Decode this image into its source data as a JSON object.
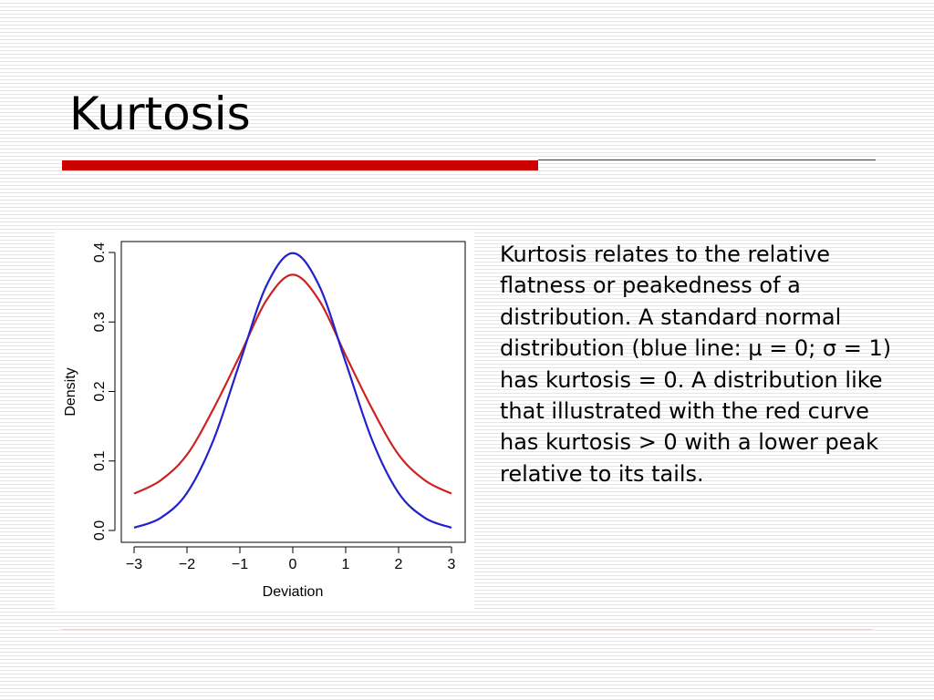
{
  "slide": {
    "title": "Kurtosis",
    "body": "Kurtosis relates to the relative flatness or peakedness of a distribution. A standard normal distribution (blue line: µ = 0; σ = 1) has kurtosis = 0. A distribution like that illustrated with the red curve has kurtosis > 0 with a lower peak relative to its tails."
  },
  "colors": {
    "accent_bar": "#cc0000",
    "normal_curve": "#2222cc",
    "heavy_tail_curve": "#cc2222"
  },
  "chart_data": {
    "type": "line",
    "xlabel": "Deviation",
    "ylabel": "Density",
    "xlim": [
      -3,
      3
    ],
    "ylim": [
      0,
      0.4
    ],
    "x_ticks": [
      "−3",
      "−2",
      "−1",
      "0",
      "1",
      "2",
      "3"
    ],
    "y_ticks": [
      "0.0",
      "0.1",
      "0.2",
      "0.3",
      "0.4"
    ],
    "series": [
      {
        "color": "#2222cc",
        "x": [
          -3,
          -2.5,
          -2,
          -1.5,
          -1,
          -0.5,
          0,
          0.5,
          1,
          1.5,
          2,
          2.5,
          3
        ],
        "values": [
          0.004,
          0.018,
          0.054,
          0.13,
          0.242,
          0.352,
          0.399,
          0.352,
          0.242,
          0.13,
          0.054,
          0.018,
          0.004
        ]
      },
      {
        "color": "#cc2222",
        "x": [
          -3,
          -2.5,
          -2,
          -1.5,
          -1,
          -0.5,
          0,
          0.5,
          1,
          1.5,
          2,
          2.5,
          3
        ],
        "values": [
          0.053,
          0.072,
          0.109,
          0.175,
          0.252,
          0.331,
          0.368,
          0.331,
          0.252,
          0.175,
          0.109,
          0.072,
          0.053
        ]
      }
    ],
    "grid": false,
    "legend": "none"
  }
}
